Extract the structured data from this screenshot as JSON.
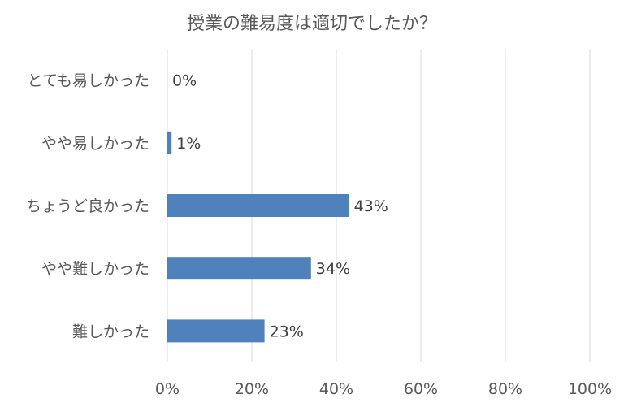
{
  "chart_data": {
    "type": "bar",
    "orientation": "horizontal",
    "title": "授業の難易度は適切でしたか？",
    "categories": [
      "とても易しかった",
      "やや易しかった",
      "ちょうど良かった",
      "やや難しかった",
      "難しかった"
    ],
    "values": [
      0,
      1,
      43,
      34,
      23
    ],
    "data_labels": [
      "0%",
      "1%",
      "43%",
      "34%",
      "23%"
    ],
    "x_ticks": [
      "0%",
      "20%",
      "40%",
      "60%",
      "80%",
      "100%"
    ],
    "xlim": [
      0,
      100
    ],
    "grid": true,
    "bar_color": "#4F81BD",
    "grid_color": "#D9D9D9"
  }
}
